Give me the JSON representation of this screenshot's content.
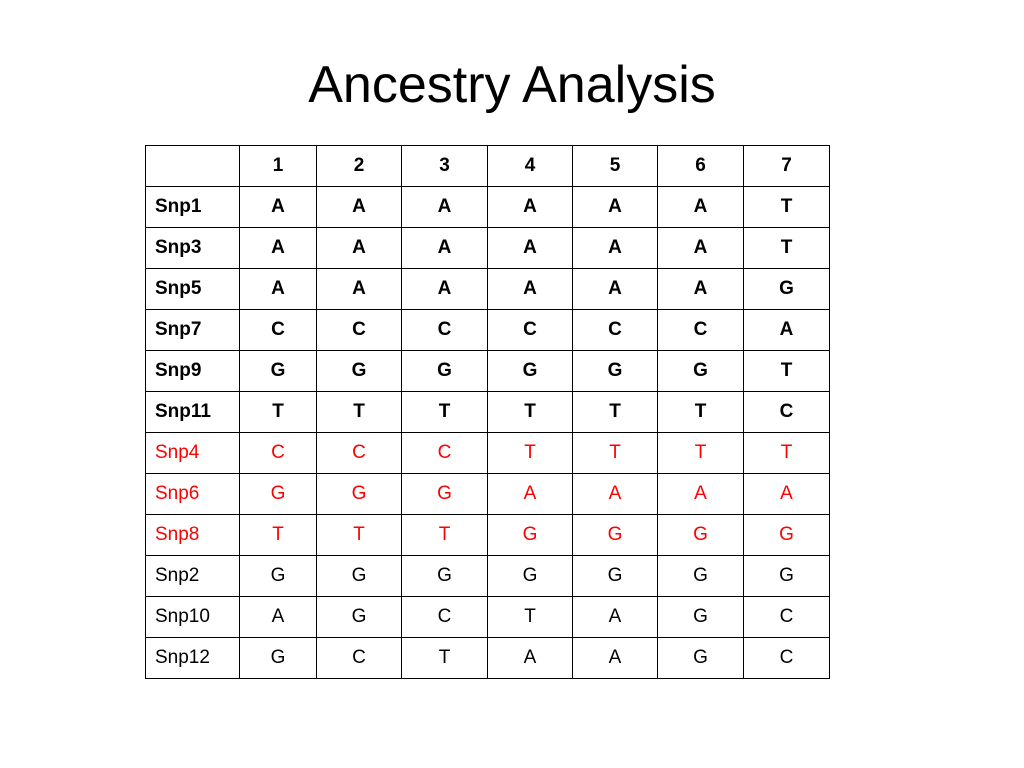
{
  "title": "Ancestry Analysis",
  "table": {
    "header": [
      "1",
      "2",
      "3",
      "4",
      "5",
      "6",
      "7"
    ],
    "header_bold": true,
    "rows": [
      {
        "label": "Snp1",
        "cells": [
          "A",
          "A",
          "A",
          "A",
          "A",
          "A",
          "T"
        ],
        "bold": true,
        "color": "#000000"
      },
      {
        "label": "Snp3",
        "cells": [
          "A",
          "A",
          "A",
          "A",
          "A",
          "A",
          "T"
        ],
        "bold": true,
        "color": "#000000"
      },
      {
        "label": "Snp5",
        "cells": [
          "A",
          "A",
          "A",
          "A",
          "A",
          "A",
          "G"
        ],
        "bold": true,
        "color": "#000000"
      },
      {
        "label": "Snp7",
        "cells": [
          "C",
          "C",
          "C",
          "C",
          "C",
          "C",
          "A"
        ],
        "bold": true,
        "color": "#000000"
      },
      {
        "label": "Snp9",
        "cells": [
          "G",
          "G",
          "G",
          "G",
          "G",
          "G",
          "T"
        ],
        "bold": true,
        "color": "#000000"
      },
      {
        "label": "Snp11",
        "cells": [
          "T",
          "T",
          "T",
          "T",
          "T",
          "T",
          "C"
        ],
        "bold": true,
        "color": "#000000"
      },
      {
        "label": "Snp4",
        "cells": [
          "C",
          "C",
          "C",
          "T",
          "T",
          "T",
          "T"
        ],
        "bold": false,
        "color": "#ff0000"
      },
      {
        "label": "Snp6",
        "cells": [
          "G",
          "G",
          "G",
          "A",
          "A",
          "A",
          "A"
        ],
        "bold": false,
        "color": "#ff0000"
      },
      {
        "label": "Snp8",
        "cells": [
          "T",
          "T",
          "T",
          "G",
          "G",
          "G",
          "G"
        ],
        "bold": false,
        "color": "#ff0000"
      },
      {
        "label": "Snp2",
        "cells": [
          "G",
          "G",
          "G",
          "G",
          "G",
          "G",
          "G"
        ],
        "bold": false,
        "color": "#000000"
      },
      {
        "label": "Snp10",
        "cells": [
          "A",
          "G",
          "C",
          "T",
          "A",
          "G",
          "C"
        ],
        "bold": false,
        "color": "#000000"
      },
      {
        "label": "Snp12",
        "cells": [
          "G",
          "C",
          "T",
          "A",
          "A",
          "G",
          "C"
        ],
        "bold": false,
        "color": "#000000"
      }
    ]
  }
}
